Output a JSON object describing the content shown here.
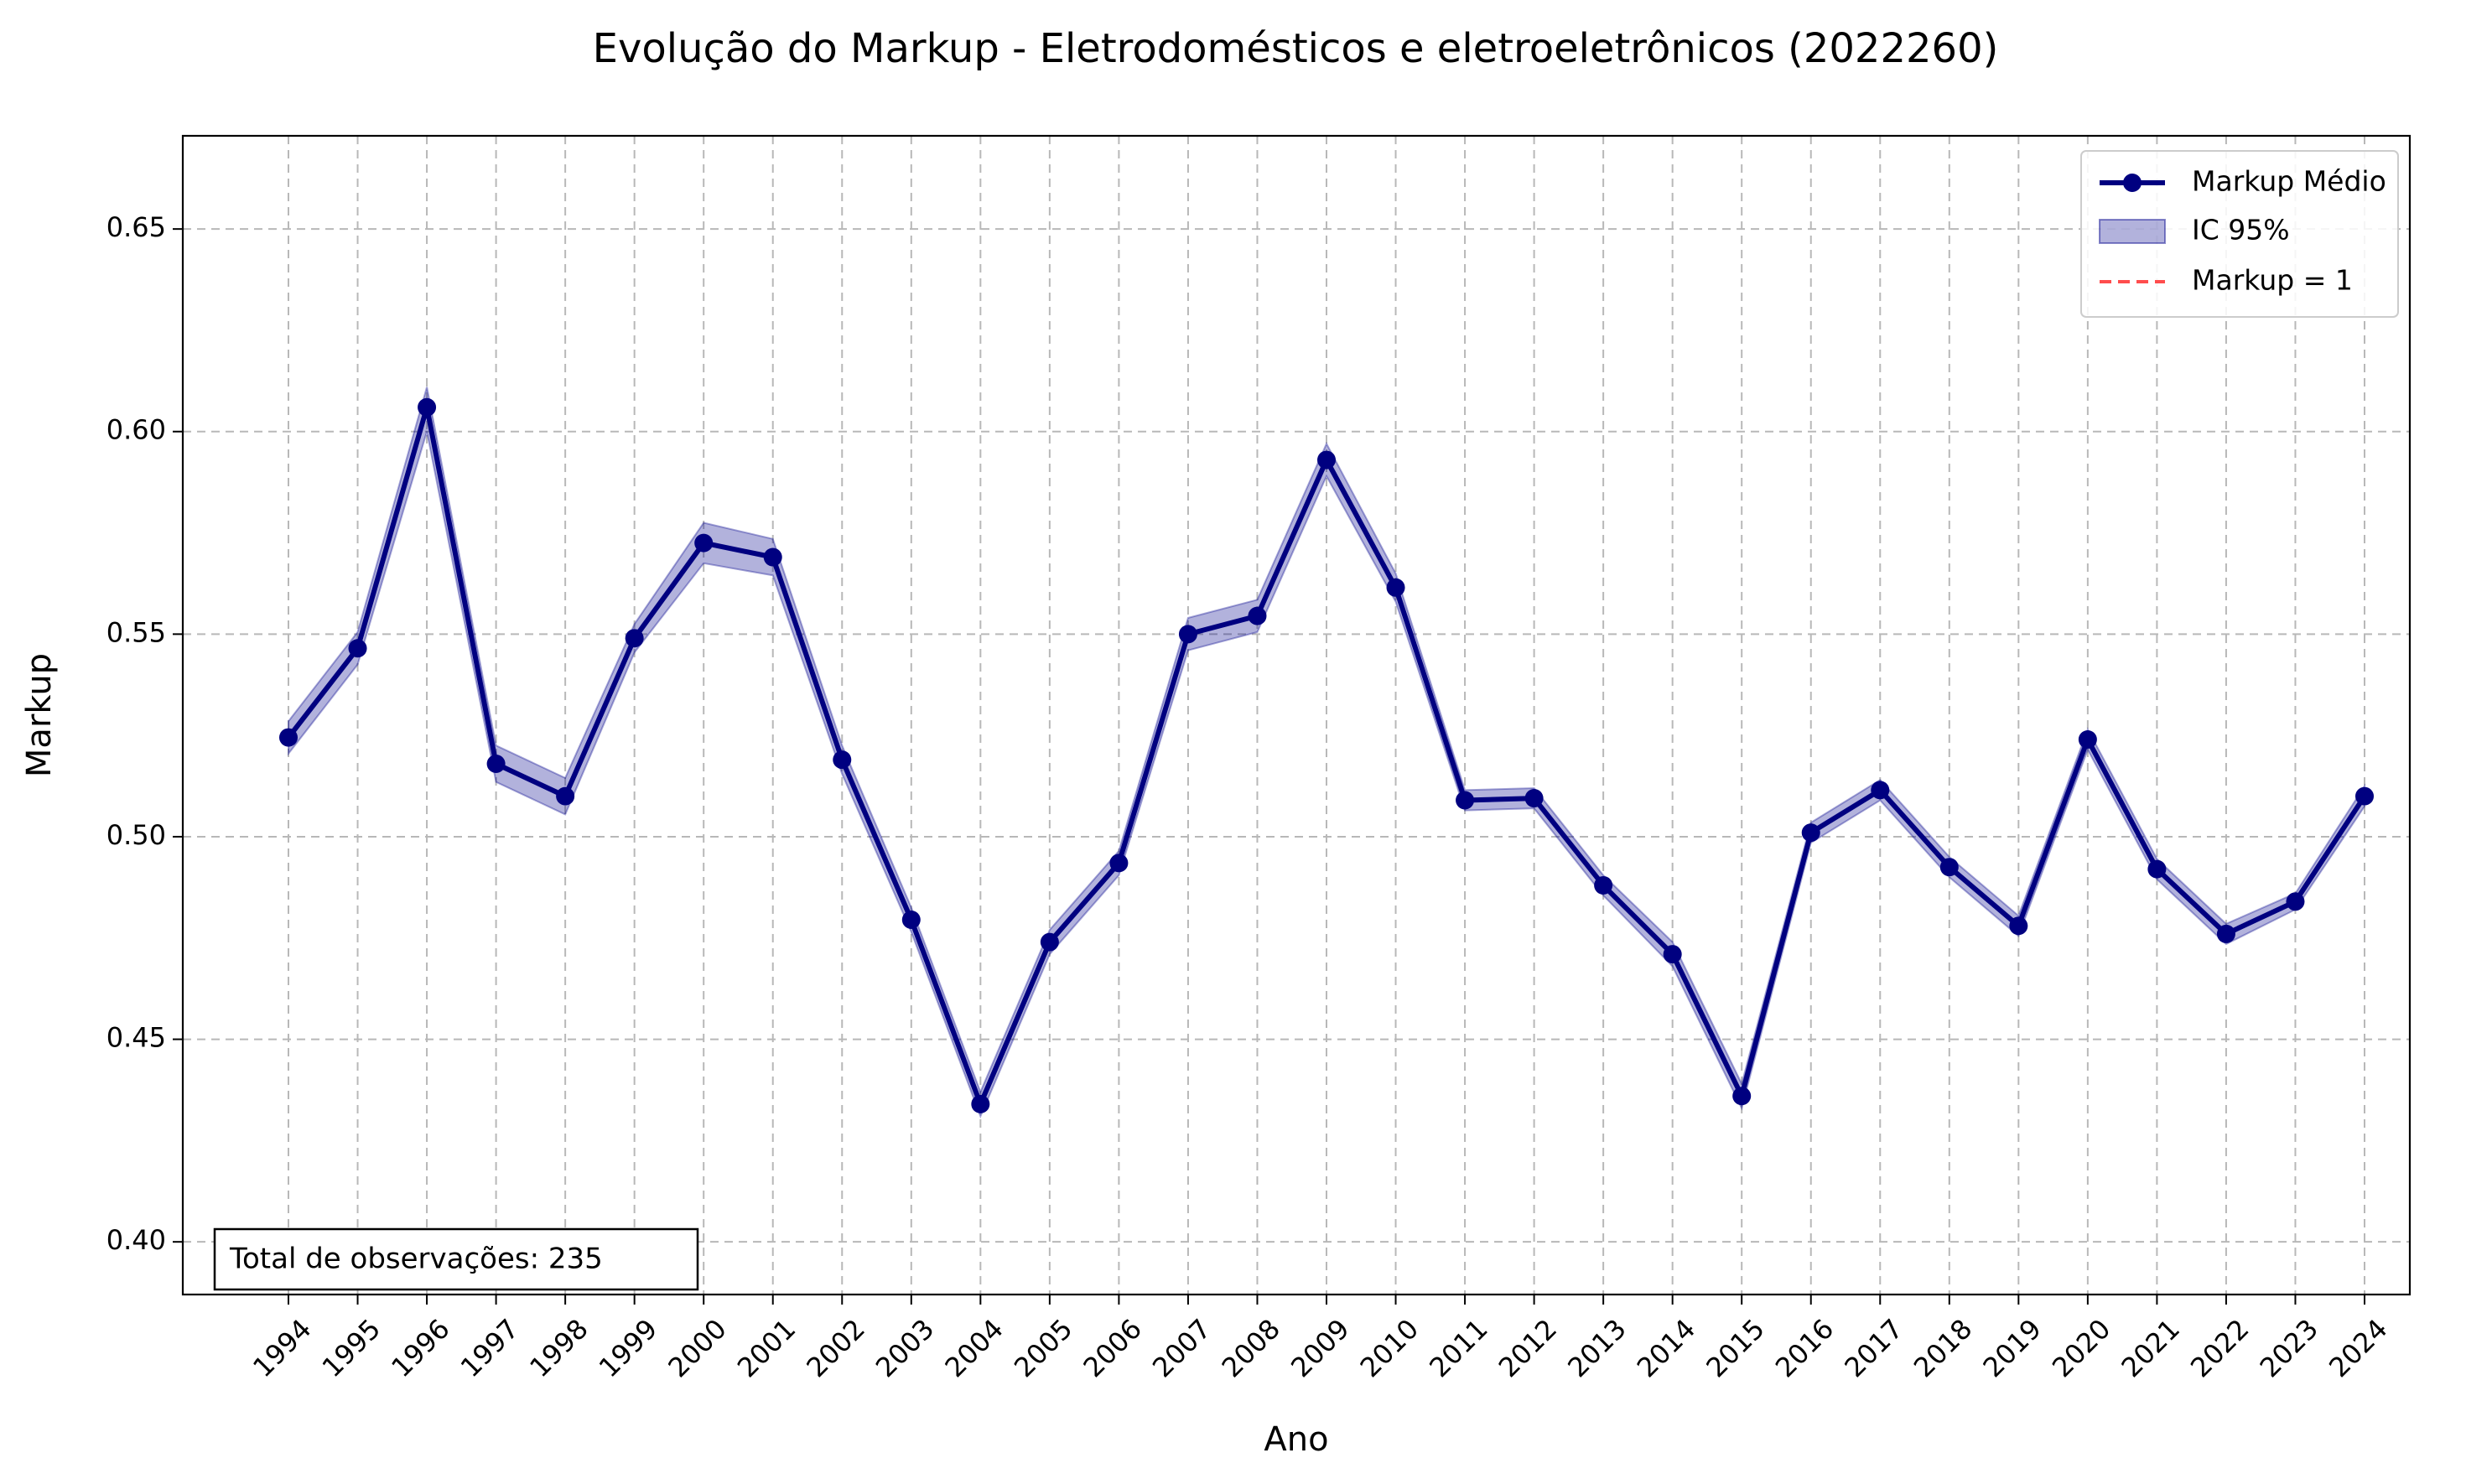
{
  "chart_data": {
    "type": "line",
    "title": "Evolução do Markup - Eletrodomésticos e eletroeletrônicos (2022260)",
    "xlabel": "Ano",
    "ylabel": "Markup",
    "x": [
      1994,
      1995,
      1996,
      1997,
      1998,
      1999,
      2000,
      2001,
      2002,
      2003,
      2004,
      2005,
      2006,
      2007,
      2008,
      2009,
      2010,
      2011,
      2012,
      2013,
      2014,
      2015,
      2016,
      2017,
      2018,
      2019,
      2020,
      2021,
      2022,
      2023,
      2024
    ],
    "xtick_labels": [
      "1994",
      "1995",
      "1996",
      "1997",
      "1998",
      "1999",
      "2000",
      "2001",
      "2002",
      "2003",
      "2004",
      "2005",
      "2006",
      "2007",
      "2008",
      "2009",
      "2010",
      "2011",
      "2012",
      "2013",
      "2014",
      "2015",
      "2016",
      "2017",
      "2018",
      "2019",
      "2020",
      "2021",
      "2022",
      "2023",
      "2024"
    ],
    "yticks": [
      0.4,
      0.45,
      0.5,
      0.55,
      0.6,
      0.65
    ],
    "ytick_labels": [
      "0.40",
      "0.45",
      "0.50",
      "0.55",
      "0.60",
      "0.65"
    ],
    "ylim": [
      0.387,
      0.673
    ],
    "grid": true,
    "legend_position": "top-right",
    "series": [
      {
        "name": "Markup Médio",
        "color": "#000080",
        "marker": "circle",
        "values": [
          0.5245,
          0.5465,
          0.606,
          0.518,
          0.51,
          0.549,
          0.5725,
          0.569,
          0.519,
          0.4795,
          0.434,
          0.474,
          0.4935,
          0.55,
          0.5545,
          0.593,
          0.5615,
          0.509,
          0.5095,
          0.488,
          0.471,
          0.436,
          0.501,
          0.5115,
          0.4925,
          0.478,
          0.524,
          0.492,
          0.476,
          0.484,
          0.51
        ]
      },
      {
        "name": "IC 95%",
        "color": "#00008b",
        "type": "band",
        "lower": [
          0.5205,
          0.5425,
          0.6,
          0.5135,
          0.5055,
          0.5455,
          0.5675,
          0.5645,
          0.5155,
          0.4765,
          0.431,
          0.471,
          0.4905,
          0.546,
          0.5505,
          0.589,
          0.558,
          0.5065,
          0.507,
          0.4855,
          0.468,
          0.433,
          0.4985,
          0.509,
          0.49,
          0.4755,
          0.5215,
          0.4895,
          0.4735,
          0.482,
          0.5075
        ],
        "upper": [
          0.5285,
          0.5505,
          0.611,
          0.5225,
          0.5145,
          0.5525,
          0.5775,
          0.5735,
          0.5225,
          0.4825,
          0.437,
          0.477,
          0.4965,
          0.554,
          0.5585,
          0.597,
          0.565,
          0.5115,
          0.512,
          0.4905,
          0.474,
          0.439,
          0.5035,
          0.514,
          0.495,
          0.4805,
          0.5265,
          0.4945,
          0.4785,
          0.486,
          0.5125
        ]
      },
      {
        "name": "Markup = 1",
        "color": "#ff4d4d",
        "type": "hline",
        "y": 1
      }
    ],
    "annotation": "Total de observações: 235"
  }
}
